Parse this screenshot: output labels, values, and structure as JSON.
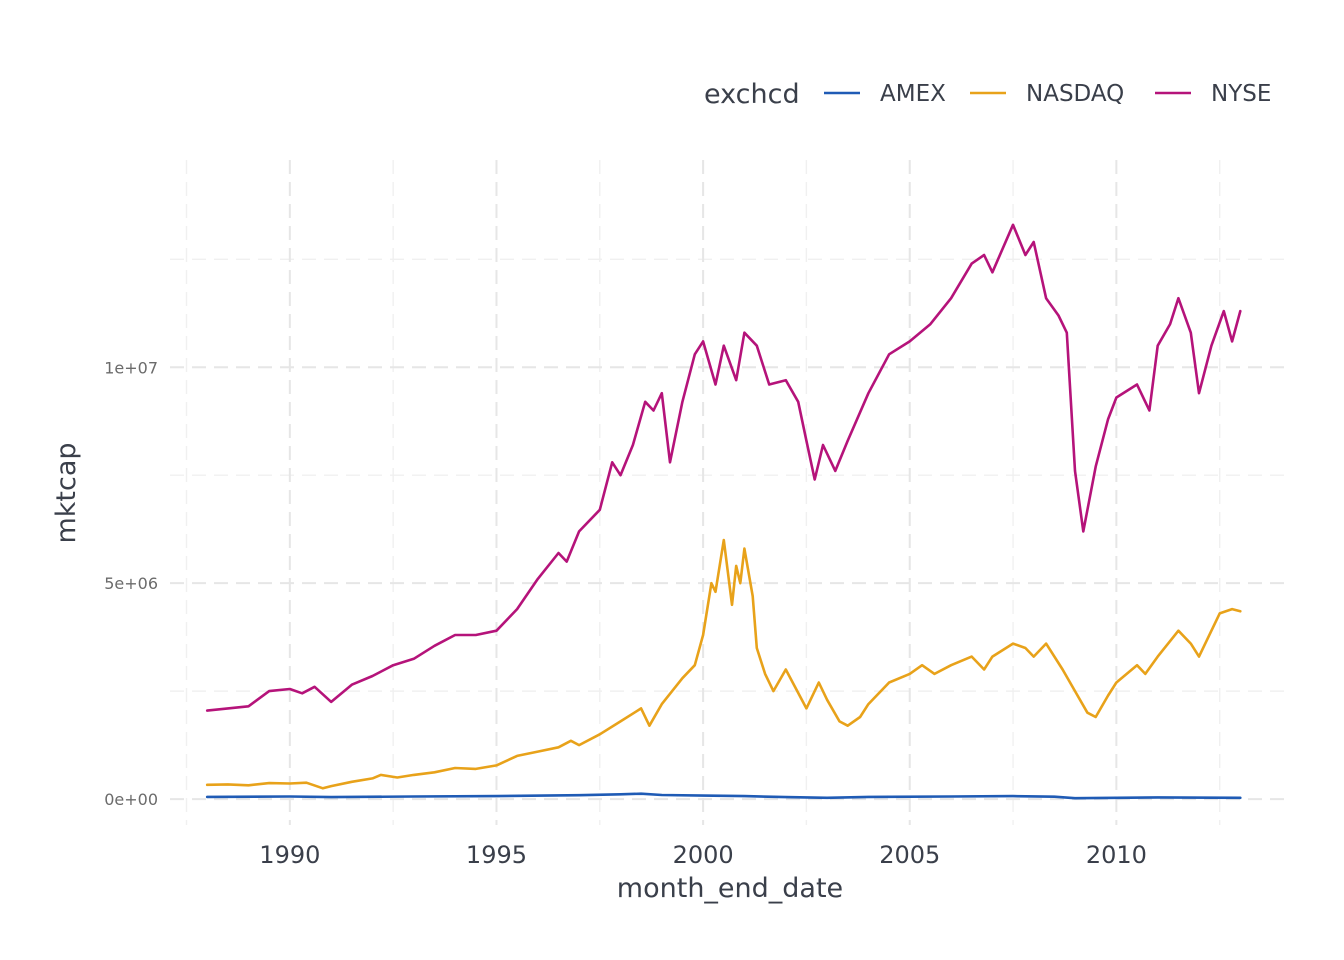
{
  "chart_data": {
    "type": "line",
    "xlabel": "month_end_date",
    "ylabel": "mktcap",
    "xlim": [
      1988.0,
      2013.0
    ],
    "ylim": [
      -600000,
      14800000
    ],
    "x_ticks": [
      {
        "value": 1990,
        "label": "1990"
      },
      {
        "value": 1995,
        "label": "1995"
      },
      {
        "value": 2000,
        "label": "2000"
      },
      {
        "value": 2005,
        "label": "2005"
      },
      {
        "value": 2010,
        "label": "2010"
      }
    ],
    "y_ticks": [
      {
        "value": 0,
        "label": "0e+00"
      },
      {
        "value": 5000000,
        "label": "5e+06"
      },
      {
        "value": 10000000,
        "label": "1e+07"
      }
    ],
    "grid": true,
    "legend": {
      "title": "exchcd",
      "position": "top-right"
    },
    "series": [
      {
        "name": "AMEX",
        "color": "#1f5bb5",
        "points": [
          [
            1988.0,
            50000
          ],
          [
            1990.0,
            60000
          ],
          [
            1991.0,
            45000
          ],
          [
            1993.0,
            60000
          ],
          [
            1995.0,
            70000
          ],
          [
            1997.0,
            90000
          ],
          [
            1998.0,
            110000
          ],
          [
            1998.5,
            125000
          ],
          [
            1999.0,
            95000
          ],
          [
            2000.0,
            80000
          ],
          [
            2001.0,
            70000
          ],
          [
            2002.0,
            45000
          ],
          [
            2003.0,
            30000
          ],
          [
            2004.0,
            50000
          ],
          [
            2006.0,
            60000
          ],
          [
            2007.5,
            70000
          ],
          [
            2008.5,
            55000
          ],
          [
            2009.0,
            20000
          ],
          [
            2010.0,
            30000
          ],
          [
            2011.0,
            40000
          ],
          [
            2013.0,
            30000
          ]
        ]
      },
      {
        "name": "NASDAQ",
        "color": "#e8a21a",
        "points": [
          [
            1988.0,
            330000
          ],
          [
            1988.5,
            340000
          ],
          [
            1989.0,
            320000
          ],
          [
            1989.5,
            370000
          ],
          [
            1990.0,
            360000
          ],
          [
            1990.4,
            380000
          ],
          [
            1990.8,
            250000
          ],
          [
            1991.0,
            300000
          ],
          [
            1991.5,
            400000
          ],
          [
            1992.0,
            480000
          ],
          [
            1992.2,
            560000
          ],
          [
            1992.6,
            500000
          ],
          [
            1993.0,
            560000
          ],
          [
            1993.5,
            620000
          ],
          [
            1994.0,
            720000
          ],
          [
            1994.5,
            700000
          ],
          [
            1995.0,
            780000
          ],
          [
            1995.5,
            1000000
          ],
          [
            1996.0,
            1100000
          ],
          [
            1996.5,
            1200000
          ],
          [
            1996.8,
            1350000
          ],
          [
            1997.0,
            1250000
          ],
          [
            1997.5,
            1500000
          ],
          [
            1998.0,
            1800000
          ],
          [
            1998.5,
            2100000
          ],
          [
            1998.7,
            1700000
          ],
          [
            1999.0,
            2200000
          ],
          [
            1999.5,
            2800000
          ],
          [
            1999.8,
            3100000
          ],
          [
            2000.0,
            3800000
          ],
          [
            2000.2,
            5000000
          ],
          [
            2000.3,
            4800000
          ],
          [
            2000.5,
            6000000
          ],
          [
            2000.7,
            4500000
          ],
          [
            2000.8,
            5400000
          ],
          [
            2000.9,
            5000000
          ],
          [
            2001.0,
            5800000
          ],
          [
            2001.2,
            4700000
          ],
          [
            2001.3,
            3500000
          ],
          [
            2001.5,
            2900000
          ],
          [
            2001.7,
            2500000
          ],
          [
            2002.0,
            3000000
          ],
          [
            2002.5,
            2100000
          ],
          [
            2002.8,
            2700000
          ],
          [
            2003.0,
            2300000
          ],
          [
            2003.3,
            1800000
          ],
          [
            2003.5,
            1700000
          ],
          [
            2003.8,
            1900000
          ],
          [
            2004.0,
            2200000
          ],
          [
            2004.5,
            2700000
          ],
          [
            2005.0,
            2900000
          ],
          [
            2005.3,
            3100000
          ],
          [
            2005.6,
            2900000
          ],
          [
            2006.0,
            3100000
          ],
          [
            2006.5,
            3300000
          ],
          [
            2006.8,
            3000000
          ],
          [
            2007.0,
            3300000
          ],
          [
            2007.5,
            3600000
          ],
          [
            2007.8,
            3500000
          ],
          [
            2008.0,
            3300000
          ],
          [
            2008.3,
            3600000
          ],
          [
            2008.7,
            3000000
          ],
          [
            2009.0,
            2500000
          ],
          [
            2009.3,
            2000000
          ],
          [
            2009.5,
            1900000
          ],
          [
            2009.8,
            2400000
          ],
          [
            2010.0,
            2700000
          ],
          [
            2010.5,
            3100000
          ],
          [
            2010.7,
            2900000
          ],
          [
            2011.0,
            3300000
          ],
          [
            2011.5,
            3900000
          ],
          [
            2011.8,
            3600000
          ],
          [
            2012.0,
            3300000
          ],
          [
            2012.5,
            4300000
          ],
          [
            2012.8,
            4400000
          ],
          [
            2013.0,
            4350000
          ]
        ]
      },
      {
        "name": "NYSE",
        "color": "#b5137a",
        "points": [
          [
            1988.0,
            2050000
          ],
          [
            1988.5,
            2100000
          ],
          [
            1989.0,
            2150000
          ],
          [
            1989.5,
            2500000
          ],
          [
            1990.0,
            2550000
          ],
          [
            1990.3,
            2450000
          ],
          [
            1990.6,
            2600000
          ],
          [
            1991.0,
            2250000
          ],
          [
            1991.5,
            2650000
          ],
          [
            1992.0,
            2850000
          ],
          [
            1992.5,
            3100000
          ],
          [
            1993.0,
            3250000
          ],
          [
            1993.5,
            3550000
          ],
          [
            1994.0,
            3800000
          ],
          [
            1994.5,
            3800000
          ],
          [
            1995.0,
            3900000
          ],
          [
            1995.5,
            4400000
          ],
          [
            1996.0,
            5100000
          ],
          [
            1996.5,
            5700000
          ],
          [
            1996.7,
            5500000
          ],
          [
            1997.0,
            6200000
          ],
          [
            1997.5,
            6700000
          ],
          [
            1997.8,
            7800000
          ],
          [
            1998.0,
            7500000
          ],
          [
            1998.3,
            8200000
          ],
          [
            1998.6,
            9200000
          ],
          [
            1998.8,
            9000000
          ],
          [
            1999.0,
            9400000
          ],
          [
            1999.2,
            7800000
          ],
          [
            1999.5,
            9200000
          ],
          [
            1999.8,
            10300000
          ],
          [
            2000.0,
            10600000
          ],
          [
            2000.3,
            9600000
          ],
          [
            2000.5,
            10500000
          ],
          [
            2000.8,
            9700000
          ],
          [
            2001.0,
            10800000
          ],
          [
            2001.3,
            10500000
          ],
          [
            2001.6,
            9600000
          ],
          [
            2002.0,
            9700000
          ],
          [
            2002.3,
            9200000
          ],
          [
            2002.5,
            8300000
          ],
          [
            2002.7,
            7400000
          ],
          [
            2002.9,
            8200000
          ],
          [
            2003.2,
            7600000
          ],
          [
            2003.5,
            8300000
          ],
          [
            2004.0,
            9400000
          ],
          [
            2004.5,
            10300000
          ],
          [
            2005.0,
            10600000
          ],
          [
            2005.5,
            11000000
          ],
          [
            2006.0,
            11600000
          ],
          [
            2006.5,
            12400000
          ],
          [
            2006.8,
            12600000
          ],
          [
            2007.0,
            12200000
          ],
          [
            2007.5,
            13300000
          ],
          [
            2007.8,
            12600000
          ],
          [
            2008.0,
            12900000
          ],
          [
            2008.3,
            11600000
          ],
          [
            2008.6,
            11200000
          ],
          [
            2008.8,
            10800000
          ],
          [
            2009.0,
            7600000
          ],
          [
            2009.2,
            6200000
          ],
          [
            2009.5,
            7700000
          ],
          [
            2009.8,
            8800000
          ],
          [
            2010.0,
            9300000
          ],
          [
            2010.5,
            9600000
          ],
          [
            2010.8,
            9000000
          ],
          [
            2011.0,
            10500000
          ],
          [
            2011.3,
            11000000
          ],
          [
            2011.5,
            11600000
          ],
          [
            2011.8,
            10800000
          ],
          [
            2012.0,
            9400000
          ],
          [
            2012.3,
            10500000
          ],
          [
            2012.6,
            11300000
          ],
          [
            2012.8,
            10600000
          ],
          [
            2013.0,
            11300000
          ]
        ]
      }
    ]
  }
}
